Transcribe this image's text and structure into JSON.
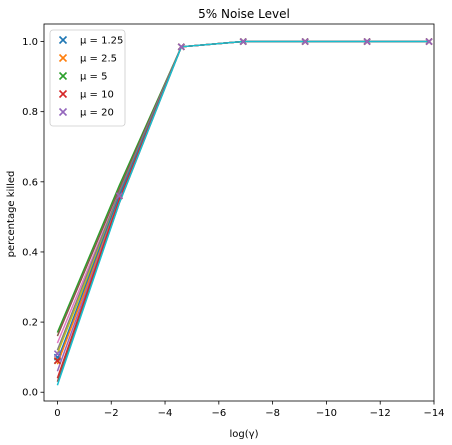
{
  "chart_data": {
    "type": "line",
    "title": "5% Noise Level",
    "xlabel": "log(γ)",
    "ylabel": "percentage killed",
    "xlim": [
      0.5,
      -14
    ],
    "ylim": [
      -0.025,
      1.05
    ],
    "x_inverted": true,
    "grid": false,
    "legend_position": "top-left",
    "markers": "x",
    "x": [
      0,
      -2.303,
      -4.605,
      -6.908,
      -9.21,
      -11.513,
      -13.816
    ],
    "x_ticks": [
      0,
      -2,
      -4,
      -6,
      -8,
      -10,
      -12,
      -14
    ],
    "x_tick_labels": [
      "0",
      "−2",
      "−4",
      "−6",
      "−8",
      "−10",
      "−12",
      "−14"
    ],
    "y_ticks": [
      0.0,
      0.2,
      0.4,
      0.6,
      0.8,
      1.0
    ],
    "y_tick_labels": [
      "0.0",
      "0.2",
      "0.4",
      "0.6",
      "0.8",
      "1.0"
    ],
    "series": [
      {
        "name": "μ = 1.25",
        "color": "#1f77b4",
        "values": [
          0.1,
          0.56,
          0.985,
          1.0,
          1.0,
          1.0,
          1.0
        ]
      },
      {
        "name": "μ = 2.5",
        "color": "#ff7f0e",
        "values": [
          0.09,
          0.56,
          0.985,
          1.0,
          1.0,
          1.0,
          1.0
        ]
      },
      {
        "name": "μ = 5",
        "color": "#2ca02c",
        "values": [
          0.09,
          0.56,
          0.985,
          1.0,
          1.0,
          1.0,
          1.0
        ]
      },
      {
        "name": "μ = 10",
        "color": "#d62728",
        "values": [
          0.09,
          0.56,
          0.985,
          1.0,
          1.0,
          1.0,
          1.0
        ]
      },
      {
        "name": "μ = 20",
        "color": "#9467bd",
        "values": [
          0.11,
          0.56,
          0.985,
          1.0,
          1.0,
          1.0,
          1.0
        ]
      }
    ],
    "runs": [
      {
        "color": "#2ca02c",
        "values": [
          0.17,
          0.59,
          0.985,
          1.0,
          1.0,
          1.0,
          1.0
        ]
      },
      {
        "color": "#8c564b",
        "values": [
          0.16,
          0.58,
          0.985,
          1.0,
          1.0,
          1.0,
          1.0
        ]
      },
      {
        "color": "#e377c2",
        "values": [
          0.14,
          0.57,
          0.985,
          1.0,
          1.0,
          1.0,
          1.0
        ]
      },
      {
        "color": "#7f7f7f",
        "values": [
          0.12,
          0.57,
          0.985,
          1.0,
          1.0,
          1.0,
          1.0
        ]
      },
      {
        "color": "#bcbd22",
        "values": [
          0.11,
          0.56,
          0.985,
          1.0,
          1.0,
          1.0,
          1.0
        ]
      },
      {
        "color": "#1f77b4",
        "values": [
          0.09,
          0.56,
          0.985,
          1.0,
          1.0,
          1.0,
          1.0
        ]
      },
      {
        "color": "#ff7f0e",
        "values": [
          0.08,
          0.55,
          0.985,
          1.0,
          1.0,
          1.0,
          1.0
        ]
      },
      {
        "color": "#9467bd",
        "values": [
          0.06,
          0.55,
          0.985,
          1.0,
          1.0,
          1.0,
          1.0
        ]
      },
      {
        "color": "#d62728",
        "values": [
          0.04,
          0.55,
          0.985,
          1.0,
          1.0,
          1.0,
          1.0
        ]
      },
      {
        "color": "#8c564b",
        "values": [
          0.03,
          0.54,
          0.985,
          1.0,
          1.0,
          1.0,
          1.0
        ]
      },
      {
        "color": "#17becf",
        "values": [
          0.02,
          0.54,
          0.985,
          1.0,
          1.0,
          1.0,
          1.0
        ]
      }
    ]
  }
}
